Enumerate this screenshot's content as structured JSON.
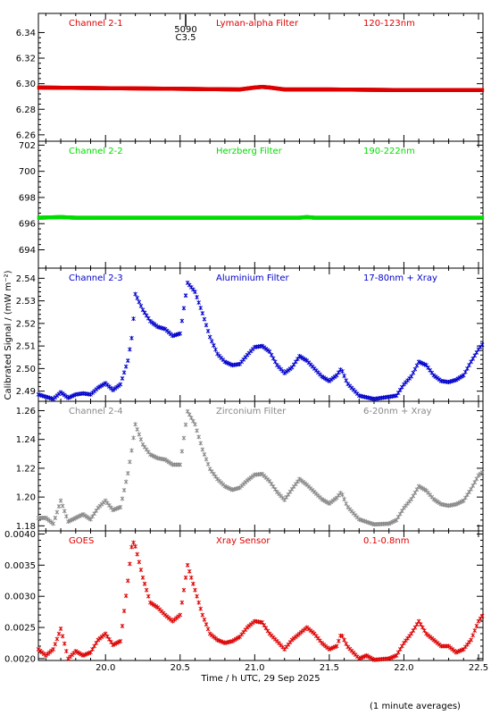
{
  "figure": {
    "ylabel": "Calibrated Signal / (mW m⁻²)",
    "xlabel": "Time / h UTC, 29 Sep 2025",
    "footnote": "(1 minute averages)",
    "event_number": "5090",
    "event_class": "C3.5"
  },
  "chart_data": [
    {
      "type": "scatter",
      "channel": "Channel 2-1",
      "filter": "Lyman-alpha Filter",
      "band": "120-123nm",
      "color": "#dd0000",
      "ylim": [
        6.255,
        6.355
      ],
      "yticks": [
        6.26,
        6.28,
        6.3,
        6.32,
        6.34
      ],
      "ytick_labels": [
        "6.26",
        "6.28",
        "6.30",
        "6.32",
        "6.34"
      ],
      "xlim": [
        19.55,
        22.53
      ],
      "xticks": [
        20.0,
        20.5,
        21.0,
        21.5,
        22.0,
        22.5
      ],
      "series_points": [
        [
          19.55,
          6.297
        ],
        [
          20.0,
          6.2965
        ],
        [
          20.5,
          6.296
        ],
        [
          20.9,
          6.2955
        ],
        [
          21.0,
          6.297
        ],
        [
          21.05,
          6.2975
        ],
        [
          21.1,
          6.297
        ],
        [
          21.2,
          6.2955
        ],
        [
          21.5,
          6.2955
        ],
        [
          22.0,
          6.295
        ],
        [
          22.53,
          6.295
        ]
      ]
    },
    {
      "type": "scatter",
      "channel": "Channel 2-2",
      "filter": "Herzberg Filter",
      "band": "190-222nm",
      "color": "#00dd00",
      "ylim": [
        692.6,
        702.3
      ],
      "yticks": [
        694,
        696,
        698,
        700,
        702
      ],
      "ytick_labels": [
        "694",
        "696",
        "698",
        "700",
        "702"
      ],
      "xlim": [
        19.55,
        22.53
      ],
      "xticks": [
        20.0,
        20.5,
        21.0,
        21.5,
        22.0,
        22.5
      ],
      "series_points": [
        [
          19.55,
          696.45
        ],
        [
          19.7,
          696.5
        ],
        [
          19.8,
          696.45
        ],
        [
          20.5,
          696.45
        ],
        [
          21.3,
          696.45
        ],
        [
          21.35,
          696.5
        ],
        [
          21.4,
          696.45
        ],
        [
          22.53,
          696.45
        ]
      ]
    },
    {
      "type": "scatter",
      "channel": "Channel 2-3",
      "filter": "Aluminium Filter",
      "band": "17-80nm + Xray",
      "color": "#0000cc",
      "ylim": [
        2.4855,
        2.5445
      ],
      "yticks": [
        2.49,
        2.5,
        2.51,
        2.52,
        2.53,
        2.54
      ],
      "ytick_labels": [
        "2.49",
        "2.50",
        "2.51",
        "2.52",
        "2.53",
        "2.54"
      ],
      "xlim": [
        19.55,
        22.53
      ],
      "xticks": [
        20.0,
        20.5,
        21.0,
        21.5,
        22.0,
        22.5
      ],
      "series_points": [
        [
          19.55,
          2.4885
        ],
        [
          19.6,
          2.4875
        ],
        [
          19.65,
          2.4865
        ],
        [
          19.7,
          2.4895
        ],
        [
          19.75,
          2.487
        ],
        [
          19.8,
          2.4885
        ],
        [
          19.85,
          2.489
        ],
        [
          19.9,
          2.4885
        ],
        [
          19.95,
          2.4915
        ],
        [
          20.0,
          2.4935
        ],
        [
          20.05,
          2.4905
        ],
        [
          20.1,
          2.493
        ],
        [
          20.15,
          2.5035
        ],
        [
          20.18,
          2.5155
        ],
        [
          20.2,
          2.533
        ],
        [
          20.25,
          2.526
        ],
        [
          20.3,
          2.521
        ],
        [
          20.35,
          2.5185
        ],
        [
          20.4,
          2.5175
        ],
        [
          20.45,
          2.5145
        ],
        [
          20.5,
          2.5155
        ],
        [
          20.55,
          2.538
        ],
        [
          20.6,
          2.534
        ],
        [
          20.65,
          2.5245
        ],
        [
          20.7,
          2.514
        ],
        [
          20.75,
          2.5065
        ],
        [
          20.8,
          2.503
        ],
        [
          20.85,
          2.5015
        ],
        [
          20.9,
          2.502
        ],
        [
          20.95,
          2.506
        ],
        [
          21.0,
          2.5095
        ],
        [
          21.05,
          2.51
        ],
        [
          21.1,
          2.5075
        ],
        [
          21.15,
          2.5015
        ],
        [
          21.2,
          2.498
        ],
        [
          21.25,
          2.5005
        ],
        [
          21.3,
          2.5055
        ],
        [
          21.35,
          2.5035
        ],
        [
          21.4,
          2.5
        ],
        [
          21.45,
          2.4965
        ],
        [
          21.5,
          2.4945
        ],
        [
          21.55,
          2.497
        ],
        [
          21.58,
          2.5
        ],
        [
          21.62,
          2.4935
        ],
        [
          21.7,
          2.488
        ],
        [
          21.8,
          2.4865
        ],
        [
          21.9,
          2.4875
        ],
        [
          21.95,
          2.488
        ],
        [
          22.0,
          2.493
        ],
        [
          22.05,
          2.4965
        ],
        [
          22.1,
          2.503
        ],
        [
          22.15,
          2.5015
        ],
        [
          22.2,
          2.497
        ],
        [
          22.25,
          2.4945
        ],
        [
          22.3,
          2.494
        ],
        [
          22.35,
          2.495
        ],
        [
          22.4,
          2.497
        ],
        [
          22.45,
          2.503
        ],
        [
          22.5,
          2.5085
        ],
        [
          22.53,
          2.511
        ]
      ]
    },
    {
      "type": "scatter",
      "channel": "Channel 2-4",
      "filter": "Zirconium Filter",
      "band": "6-20nm + Xray",
      "color": "#888888",
      "ylim": [
        1.1765,
        1.2665
      ],
      "yticks": [
        1.18,
        1.2,
        1.22,
        1.24,
        1.26
      ],
      "ytick_labels": [
        "1.18",
        "1.20",
        "1.22",
        "1.24",
        "1.26"
      ],
      "xlim": [
        19.55,
        22.53
      ],
      "xticks": [
        20.0,
        20.5,
        21.0,
        21.5,
        22.0,
        22.5
      ],
      "series_points": [
        [
          19.55,
          1.1855
        ],
        [
          19.6,
          1.1855
        ],
        [
          19.65,
          1.1815
        ],
        [
          19.7,
          1.1975
        ],
        [
          19.75,
          1.183
        ],
        [
          19.8,
          1.1855
        ],
        [
          19.85,
          1.188
        ],
        [
          19.9,
          1.1845
        ],
        [
          19.95,
          1.1925
        ],
        [
          20.0,
          1.1975
        ],
        [
          20.05,
          1.191
        ],
        [
          20.1,
          1.193
        ],
        [
          20.15,
          1.2165
        ],
        [
          20.18,
          1.2355
        ],
        [
          20.2,
          1.2505
        ],
        [
          20.25,
          1.2365
        ],
        [
          20.3,
          1.2295
        ],
        [
          20.35,
          1.227
        ],
        [
          20.4,
          1.226
        ],
        [
          20.45,
          1.2225
        ],
        [
          20.5,
          1.2225
        ],
        [
          20.55,
          1.2595
        ],
        [
          20.6,
          1.2505
        ],
        [
          20.65,
          1.233
        ],
        [
          20.7,
          1.2195
        ],
        [
          20.75,
          1.2125
        ],
        [
          20.8,
          1.2075
        ],
        [
          20.85,
          1.205
        ],
        [
          20.9,
          1.2065
        ],
        [
          20.95,
          1.2115
        ],
        [
          21.0,
          1.2155
        ],
        [
          21.05,
          1.216
        ],
        [
          21.1,
          1.211
        ],
        [
          21.15,
          1.2035
        ],
        [
          21.2,
          1.198
        ],
        [
          21.25,
          1.2055
        ],
        [
          21.3,
          1.2125
        ],
        [
          21.35,
          1.2085
        ],
        [
          21.4,
          1.2035
        ],
        [
          21.45,
          1.1985
        ],
        [
          21.5,
          1.1955
        ],
        [
          21.55,
          1.1995
        ],
        [
          21.58,
          1.2035
        ],
        [
          21.62,
          1.1935
        ],
        [
          21.7,
          1.1845
        ],
        [
          21.8,
          1.181
        ],
        [
          21.9,
          1.1815
        ],
        [
          21.95,
          1.184
        ],
        [
          22.0,
          1.1925
        ],
        [
          22.05,
          1.1985
        ],
        [
          22.1,
          1.2075
        ],
        [
          22.15,
          1.2045
        ],
        [
          22.2,
          1.1985
        ],
        [
          22.25,
          1.195
        ],
        [
          22.3,
          1.194
        ],
        [
          22.35,
          1.195
        ],
        [
          22.4,
          1.1975
        ],
        [
          22.45,
          1.2055
        ],
        [
          22.5,
          1.215
        ],
        [
          22.53,
          1.2175
        ]
      ]
    },
    {
      "type": "scatter",
      "channel": "GOES",
      "filter": "Xray Sensor",
      "band": "0.1-0.8nm",
      "color": "#dd0000",
      "ylim": [
        0.00197,
        0.00405
      ],
      "yticks": [
        0.002,
        0.0025,
        0.003,
        0.0035,
        0.004
      ],
      "ytick_labels": [
        "0.0020",
        "0.0025",
        "0.0030",
        "0.0035",
        "0.0040"
      ],
      "xlim": [
        19.55,
        22.53
      ],
      "xticks": [
        20.0,
        20.5,
        21.0,
        21.5,
        22.0,
        22.5
      ],
      "series_points": [
        [
          19.55,
          0.00215
        ],
        [
          19.6,
          0.00205
        ],
        [
          19.65,
          0.00215
        ],
        [
          19.7,
          0.00248
        ],
        [
          19.75,
          0.002
        ],
        [
          19.8,
          0.00212
        ],
        [
          19.85,
          0.00205
        ],
        [
          19.9,
          0.0021
        ],
        [
          19.95,
          0.0023
        ],
        [
          20.0,
          0.0024
        ],
        [
          20.05,
          0.00222
        ],
        [
          20.1,
          0.00228
        ],
        [
          20.15,
          0.00325
        ],
        [
          20.18,
          0.0039
        ],
        [
          20.2,
          0.0038
        ],
        [
          20.25,
          0.0033
        ],
        [
          20.3,
          0.0029
        ],
        [
          20.35,
          0.00282
        ],
        [
          20.4,
          0.0027
        ],
        [
          20.45,
          0.0026
        ],
        [
          20.5,
          0.0027
        ],
        [
          20.55,
          0.0035
        ],
        [
          20.6,
          0.0031
        ],
        [
          20.65,
          0.0027
        ],
        [
          20.7,
          0.0024
        ],
        [
          20.75,
          0.0023
        ],
        [
          20.8,
          0.00225
        ],
        [
          20.85,
          0.00228
        ],
        [
          20.9,
          0.00235
        ],
        [
          20.95,
          0.0025
        ],
        [
          21.0,
          0.0026
        ],
        [
          21.05,
          0.00258
        ],
        [
          21.1,
          0.0024
        ],
        [
          21.15,
          0.00228
        ],
        [
          21.2,
          0.00215
        ],
        [
          21.25,
          0.0023
        ],
        [
          21.3,
          0.0024
        ],
        [
          21.35,
          0.0025
        ],
        [
          21.4,
          0.0024
        ],
        [
          21.45,
          0.00225
        ],
        [
          21.5,
          0.00215
        ],
        [
          21.55,
          0.0022
        ],
        [
          21.58,
          0.0024
        ],
        [
          21.62,
          0.0022
        ],
        [
          21.7,
          0.002
        ],
        [
          21.75,
          0.00205
        ],
        [
          21.8,
          0.00198
        ],
        [
          21.9,
          0.002
        ],
        [
          21.95,
          0.00205
        ],
        [
          22.0,
          0.00225
        ],
        [
          22.05,
          0.0024
        ],
        [
          22.1,
          0.0026
        ],
        [
          22.15,
          0.0024
        ],
        [
          22.2,
          0.0023
        ],
        [
          22.25,
          0.0022
        ],
        [
          22.3,
          0.0022
        ],
        [
          22.35,
          0.0021
        ],
        [
          22.4,
          0.00215
        ],
        [
          22.45,
          0.0023
        ],
        [
          22.5,
          0.0026
        ],
        [
          22.53,
          0.0027
        ]
      ]
    }
  ]
}
